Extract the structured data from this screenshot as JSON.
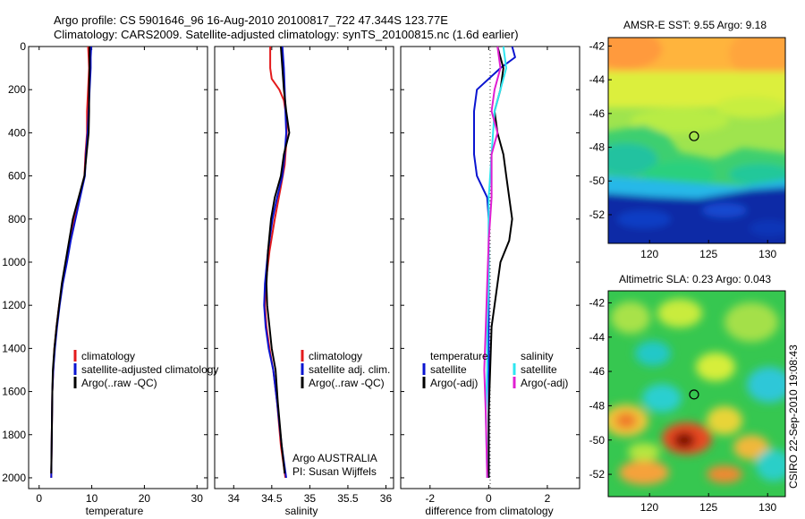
{
  "title": {
    "line1": "Argo profile: CS 5901646_96 16-Aug-2010 20100817_722 47.344S 123.77E",
    "line2": "Climatology: CARS2009. Satellite-adjusted climatology: synTS_20100815.nc (1.6d earlier)"
  },
  "colors": {
    "climatology": "#e31a1c",
    "satellite": "#0a14d0",
    "argo": "#000000",
    "sat_salinity": "#2ee6f0",
    "argo_salinity": "#e01fd2"
  },
  "chart_data": [
    {
      "type": "line",
      "panel": "temperature",
      "xlabel": "temperature",
      "ylabel": "",
      "xlim": [
        -2,
        32
      ],
      "ylim": [
        2050,
        0
      ],
      "xticks": [
        "0",
        "10",
        "20",
        "30"
      ],
      "yticks": [
        "0",
        "200",
        "400",
        "600",
        "800",
        "1000",
        "1200",
        "1400",
        "1600",
        "1800",
        "2000"
      ],
      "legend": [
        "climatology",
        "satellite-adjusted climatology",
        "Argo(..raw -QC)"
      ],
      "series": [
        {
          "name": "climatology",
          "color_key": "climatology",
          "points": [
            [
              9.3,
              0
            ],
            [
              9.4,
              50
            ],
            [
              9.5,
              100
            ],
            [
              9.3,
              200
            ],
            [
              9.1,
              300
            ],
            [
              9.1,
              400
            ],
            [
              8.8,
              500
            ],
            [
              8.6,
              600
            ],
            [
              7.6,
              700
            ],
            [
              6.7,
              800
            ],
            [
              5.9,
              900
            ],
            [
              5.2,
              1000
            ],
            [
              4.4,
              1100
            ],
            [
              3.8,
              1200
            ],
            [
              3.3,
              1300
            ],
            [
              2.9,
              1400
            ],
            [
              2.7,
              1500
            ],
            [
              2.5,
              1600
            ],
            [
              2.4,
              1800
            ],
            [
              2.3,
              2000
            ]
          ]
        },
        {
          "name": "satellite-adjusted climatology",
          "color_key": "satellite",
          "points": [
            [
              9.9,
              0
            ],
            [
              9.8,
              50
            ],
            [
              9.8,
              100
            ],
            [
              9.6,
              200
            ],
            [
              9.4,
              300
            ],
            [
              9.2,
              400
            ],
            [
              8.9,
              500
            ],
            [
              8.7,
              600
            ],
            [
              7.8,
              700
            ],
            [
              6.9,
              800
            ],
            [
              6.0,
              900
            ],
            [
              5.3,
              1000
            ],
            [
              4.5,
              1100
            ],
            [
              3.9,
              1200
            ],
            [
              3.4,
              1300
            ],
            [
              3.0,
              1400
            ],
            [
              2.7,
              1500
            ],
            [
              2.5,
              1600
            ],
            [
              2.4,
              1800
            ],
            [
              2.3,
              2000
            ]
          ]
        },
        {
          "name": "Argo(..raw -QC)",
          "color_key": "argo",
          "points": [
            [
              9.6,
              0
            ],
            [
              9.6,
              100
            ],
            [
              9.5,
              200
            ],
            [
              9.5,
              300
            ],
            [
              9.4,
              400
            ],
            [
              9.0,
              500
            ],
            [
              8.6,
              600
            ],
            [
              7.5,
              700
            ],
            [
              6.4,
              800
            ],
            [
              5.7,
              900
            ],
            [
              5.0,
              1000
            ],
            [
              4.3,
              1100
            ],
            [
              3.8,
              1200
            ],
            [
              3.3,
              1300
            ],
            [
              2.9,
              1400
            ],
            [
              2.6,
              1500
            ],
            [
              2.5,
              1600
            ],
            [
              2.4,
              1800
            ],
            [
              2.3,
              1980
            ]
          ]
        }
      ]
    },
    {
      "type": "line",
      "panel": "salinity",
      "xlabel": "salinity",
      "xlim": [
        33.75,
        36.1
      ],
      "ylim": [
        2050,
        0
      ],
      "xticks": [
        "34",
        "34.5",
        "35",
        "35.5",
        "36"
      ],
      "legend": [
        "climatology",
        "satellite adj. clim.",
        "Argo(..raw -QC)"
      ],
      "annotation": [
        "Argo AUSTRALIA",
        "PI: Susan Wijffels"
      ],
      "series": [
        {
          "name": "climatology",
          "color_key": "climatology",
          "points": [
            [
              34.48,
              0
            ],
            [
              34.48,
              100
            ],
            [
              34.5,
              150
            ],
            [
              34.6,
              200
            ],
            [
              34.66,
              250
            ],
            [
              34.7,
              350
            ],
            [
              34.69,
              450
            ],
            [
              34.67,
              550
            ],
            [
              34.62,
              650
            ],
            [
              34.54,
              800
            ],
            [
              34.47,
              950
            ],
            [
              34.42,
              1100
            ],
            [
              34.41,
              1200
            ],
            [
              34.43,
              1300
            ],
            [
              34.47,
              1400
            ],
            [
              34.52,
              1500
            ],
            [
              34.57,
              1650
            ],
            [
              34.62,
              1850
            ],
            [
              34.68,
              2000
            ]
          ]
        },
        {
          "name": "satellite adj. clim.",
          "color_key": "satellite",
          "points": [
            [
              34.64,
              0
            ],
            [
              34.66,
              100
            ],
            [
              34.67,
              200
            ],
            [
              34.68,
              300
            ],
            [
              34.69,
              400
            ],
            [
              34.67,
              500
            ],
            [
              34.64,
              600
            ],
            [
              34.57,
              700
            ],
            [
              34.51,
              800
            ],
            [
              34.45,
              950
            ],
            [
              34.41,
              1100
            ],
            [
              34.4,
              1200
            ],
            [
              34.42,
              1300
            ],
            [
              34.46,
              1400
            ],
            [
              34.52,
              1500
            ],
            [
              34.57,
              1650
            ],
            [
              34.63,
              1850
            ],
            [
              34.69,
              2000
            ]
          ]
        },
        {
          "name": "Argo(..raw -QC)",
          "color_key": "argo",
          "points": [
            [
              34.62,
              0
            ],
            [
              34.64,
              100
            ],
            [
              34.66,
              200
            ],
            [
              34.69,
              300
            ],
            [
              34.73,
              400
            ],
            [
              34.66,
              500
            ],
            [
              34.62,
              600
            ],
            [
              34.54,
              700
            ],
            [
              34.49,
              800
            ],
            [
              34.45,
              950
            ],
            [
              34.43,
              1100
            ],
            [
              34.44,
              1200
            ],
            [
              34.47,
              1300
            ],
            [
              34.5,
              1400
            ],
            [
              34.55,
              1500
            ],
            [
              34.58,
              1650
            ],
            [
              34.63,
              1850
            ],
            [
              34.67,
              1980
            ]
          ]
        }
      ]
    },
    {
      "type": "line",
      "panel": "difference",
      "xlabel": "difference from climatology",
      "xlim": [
        -3,
        3.1
      ],
      "ylim": [
        2050,
        0
      ],
      "xticks": [
        "-2",
        "0",
        "2"
      ],
      "legend": [
        "temperature",
        "satellite",
        "Argo(-adj)",
        "salinity",
        "satellite",
        "Argo(-adj)"
      ],
      "series": [
        {
          "name": "temperature satellite",
          "color_key": "satellite",
          "points": [
            [
              0.8,
              0
            ],
            [
              0.9,
              50
            ],
            [
              0.4,
              100
            ],
            [
              -0.4,
              200
            ],
            [
              -0.5,
              300
            ],
            [
              -0.5,
              400
            ],
            [
              -0.5,
              500
            ],
            [
              -0.4,
              600
            ],
            [
              -0.05,
              700
            ],
            [
              0,
              800
            ],
            [
              0,
              1000
            ],
            [
              0,
              1500
            ],
            [
              0,
              2000
            ]
          ]
        },
        {
          "name": "temperature Argo(-adj)",
          "color_key": "argo",
          "points": [
            [
              0.3,
              0
            ],
            [
              0.5,
              100
            ],
            [
              0.4,
              200
            ],
            [
              0.2,
              300
            ],
            [
              0.3,
              400
            ],
            [
              0.5,
              500
            ],
            [
              0.6,
              600
            ],
            [
              0.7,
              700
            ],
            [
              0.8,
              800
            ],
            [
              0.7,
              900
            ],
            [
              0.4,
              1000
            ],
            [
              0.3,
              1100
            ],
            [
              0.2,
              1200
            ],
            [
              0.1,
              1300
            ],
            [
              0.05,
              1500
            ],
            [
              0,
              1700
            ],
            [
              0,
              2000
            ]
          ]
        },
        {
          "name": "salinity satellite",
          "color_key": "sat_salinity",
          "points": [
            [
              0.5,
              0
            ],
            [
              0.6,
              100
            ],
            [
              0.4,
              200
            ],
            [
              0.2,
              300
            ],
            [
              0.1,
              500
            ],
            [
              0,
              700
            ],
            [
              0,
              900
            ],
            [
              0,
              1100
            ],
            [
              -0.05,
              1300
            ],
            [
              -0.05,
              1500
            ],
            [
              -0.1,
              1700
            ],
            [
              -0.05,
              2000
            ]
          ]
        },
        {
          "name": "salinity Argo(-adj)",
          "color_key": "argo_salinity",
          "points": [
            [
              0.3,
              0
            ],
            [
              0.4,
              100
            ],
            [
              0.2,
              200
            ],
            [
              0.1,
              300
            ],
            [
              0.3,
              400
            ],
            [
              0.1,
              500
            ],
            [
              0.1,
              700
            ],
            [
              0,
              900
            ],
            [
              -0.05,
              1100
            ],
            [
              -0.1,
              1300
            ],
            [
              -0.15,
              1500
            ],
            [
              -0.1,
              1700
            ],
            [
              -0.05,
              2000
            ]
          ]
        }
      ]
    },
    {
      "type": "heatmap",
      "panel": "sst",
      "title": "AMSR-E SST: 9.55 Argo: 9.18",
      "xlim": [
        116.5,
        131.5
      ],
      "ylim": [
        -53.7,
        -41.5
      ],
      "xticks": [
        "120",
        "125",
        "130"
      ],
      "yticks": [
        "-42",
        "-44",
        "-46",
        "-48",
        "-50",
        "-52"
      ],
      "argo_point": {
        "lon": 123.77,
        "lat": -47.344
      }
    },
    {
      "type": "heatmap",
      "panel": "sla",
      "title": "Altimetric SLA: 0.23 Argo: 0.043",
      "xlim": [
        116.5,
        131.5
      ],
      "ylim": [
        -53.3,
        -41.3
      ],
      "xticks": [
        "120",
        "125",
        "130"
      ],
      "yticks": [
        "-42",
        "-44",
        "-46",
        "-48",
        "-50",
        "-52"
      ],
      "argo_point": {
        "lon": 123.77,
        "lat": -47.344
      }
    }
  ],
  "side_label": "CSIRO 22-Sep-2010 19:08:43"
}
